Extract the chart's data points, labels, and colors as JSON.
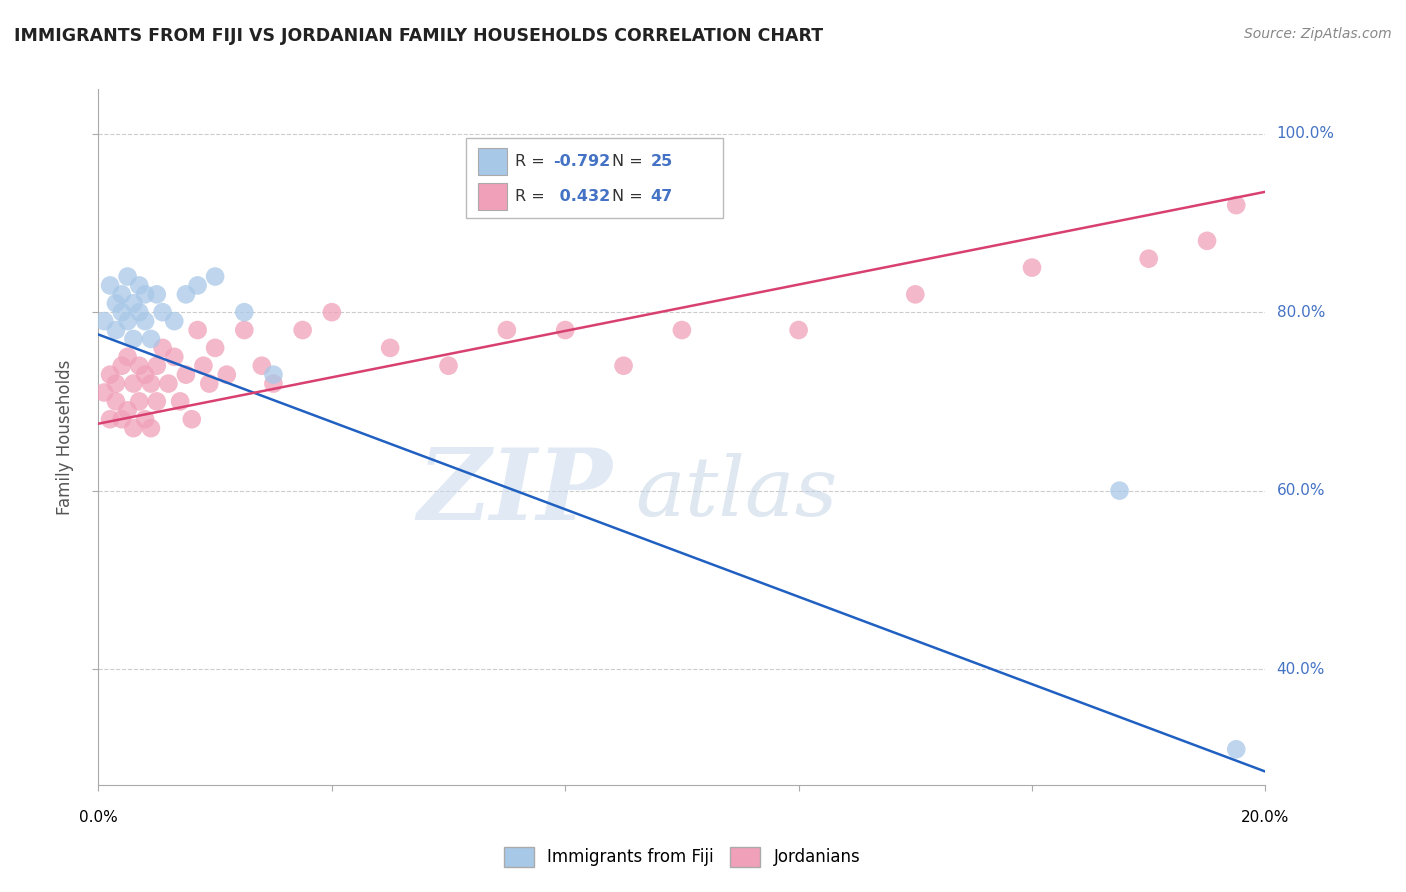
{
  "title": "IMMIGRANTS FROM FIJI VS JORDANIAN FAMILY HOUSEHOLDS CORRELATION CHART",
  "source": "Source: ZipAtlas.com",
  "ylabel": "Family Households",
  "xlim": [
    0.0,
    0.2
  ],
  "ylim": [
    0.27,
    1.05
  ],
  "yticks": [
    0.4,
    0.6,
    0.8,
    1.0
  ],
  "ytick_labels": [
    "40.0%",
    "60.0%",
    "80.0%",
    "100.0%"
  ],
  "xticks": [
    0.0,
    0.04,
    0.08,
    0.12,
    0.16,
    0.2
  ],
  "fiji_color": "#a8c8e8",
  "jordan_color": "#f0a0b8",
  "fiji_line_color": "#2060c0",
  "jordan_line_color": "#d84070",
  "fiji_line_x0": 0.0,
  "fiji_line_y0": 0.775,
  "fiji_line_x1": 0.2,
  "fiji_line_y1": 0.285,
  "jordan_line_x0": 0.0,
  "jordan_line_y0": 0.675,
  "jordan_line_x1": 0.2,
  "jordan_line_y1": 0.935,
  "fiji_R": -0.792,
  "fiji_N": 25,
  "jordan_R": 0.432,
  "jordan_N": 47,
  "legend_fiji_label": "Immigrants from Fiji",
  "legend_jordan_label": "Jordanians",
  "fiji_points_x": [
    0.001,
    0.002,
    0.003,
    0.003,
    0.004,
    0.004,
    0.005,
    0.005,
    0.006,
    0.006,
    0.007,
    0.007,
    0.008,
    0.008,
    0.009,
    0.01,
    0.011,
    0.013,
    0.015,
    0.017,
    0.02,
    0.025,
    0.03,
    0.175,
    0.195
  ],
  "fiji_points_y": [
    0.79,
    0.83,
    0.81,
    0.78,
    0.82,
    0.8,
    0.84,
    0.79,
    0.81,
    0.77,
    0.83,
    0.8,
    0.82,
    0.79,
    0.77,
    0.82,
    0.8,
    0.79,
    0.82,
    0.83,
    0.84,
    0.8,
    0.73,
    0.6,
    0.31
  ],
  "jordan_points_x": [
    0.001,
    0.002,
    0.002,
    0.003,
    0.003,
    0.004,
    0.004,
    0.005,
    0.005,
    0.006,
    0.006,
    0.007,
    0.007,
    0.008,
    0.008,
    0.009,
    0.009,
    0.01,
    0.01,
    0.011,
    0.012,
    0.013,
    0.014,
    0.015,
    0.016,
    0.017,
    0.018,
    0.019,
    0.02,
    0.022,
    0.025,
    0.028,
    0.03,
    0.035,
    0.04,
    0.05,
    0.06,
    0.07,
    0.08,
    0.09,
    0.1,
    0.12,
    0.14,
    0.16,
    0.18,
    0.195,
    0.19
  ],
  "jordan_points_y": [
    0.71,
    0.73,
    0.68,
    0.72,
    0.7,
    0.74,
    0.68,
    0.75,
    0.69,
    0.72,
    0.67,
    0.74,
    0.7,
    0.73,
    0.68,
    0.72,
    0.67,
    0.74,
    0.7,
    0.76,
    0.72,
    0.75,
    0.7,
    0.73,
    0.68,
    0.78,
    0.74,
    0.72,
    0.76,
    0.73,
    0.78,
    0.74,
    0.72,
    0.78,
    0.8,
    0.76,
    0.74,
    0.78,
    0.78,
    0.74,
    0.78,
    0.78,
    0.82,
    0.85,
    0.86,
    0.92,
    0.88
  ]
}
